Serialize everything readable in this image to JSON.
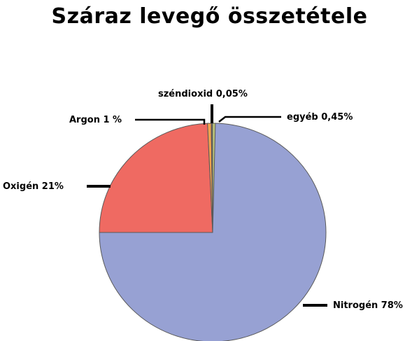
{
  "chart_data": {
    "type": "pie",
    "title": "Száraz levegő összetétele",
    "slices": [
      {
        "label": "Nitrogén 78%",
        "value": 78,
        "color": "#97a1d3"
      },
      {
        "label": "Oxigén 21%",
        "value": 21,
        "color": "#ef6a62"
      },
      {
        "label": "Argon 1 %",
        "value": 1,
        "color": "#f4a24d"
      },
      {
        "label": "széndioxid 0,05%",
        "value": 0.05,
        "color": "#666666"
      },
      {
        "label": "egyéb 0,45%",
        "value": 0.45,
        "color": "#b9c27a"
      }
    ],
    "legend": "none"
  }
}
